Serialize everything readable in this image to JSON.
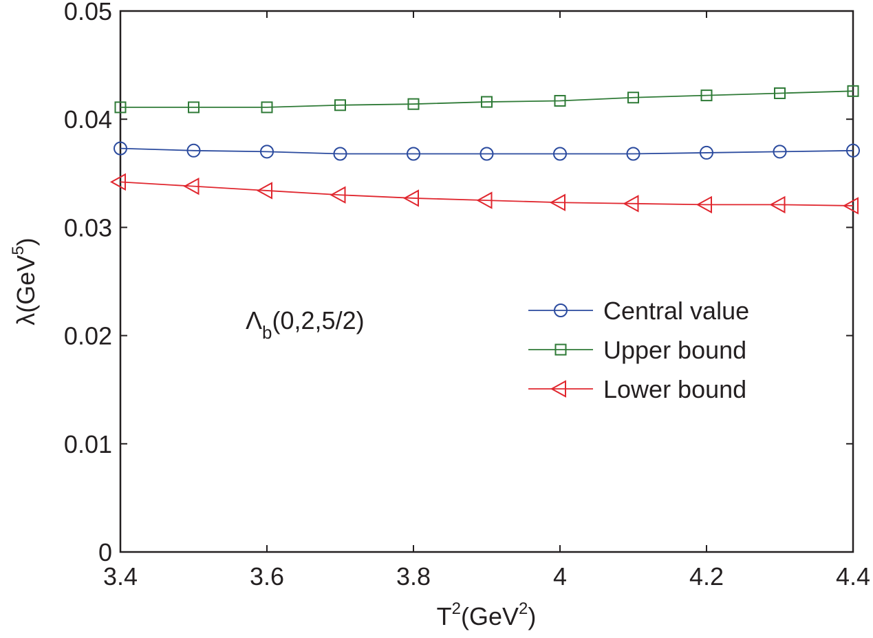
{
  "chart_data": {
    "type": "line",
    "title": "",
    "xlabel": "T",
    "xlabel_sup": "2",
    "xlabel_unit": "(GeV",
    "xlabel_unit_sup": "2",
    "xlabel_close": ")",
    "ylabel": "λ(GeV",
    "ylabel_sup": "5",
    "ylabel_close": ")",
    "xlim": [
      3.4,
      4.4
    ],
    "ylim": [
      0,
      0.05
    ],
    "xticks": [
      3.4,
      3.6,
      3.8,
      4.0,
      4.2,
      4.4
    ],
    "xtick_labels": [
      "3.4",
      "3.6",
      "3.8",
      "4",
      "4.2",
      "4.4"
    ],
    "yticks": [
      0,
      0.01,
      0.02,
      0.03,
      0.04,
      0.05
    ],
    "ytick_labels": [
      "0",
      "0.01",
      "0.02",
      "0.03",
      "0.04",
      "0.05"
    ],
    "grid": false,
    "legend_position": "center-right",
    "annotation": {
      "main": "Λ",
      "sub": "b",
      "rest": "(0,2,5/2)"
    },
    "x": [
      3.4,
      3.5,
      3.6,
      3.7,
      3.8,
      3.9,
      4.0,
      4.1,
      4.2,
      4.3,
      4.4
    ],
    "series": [
      {
        "name": "Central value",
        "marker": "circle",
        "color": "#2a4a9e",
        "values": [
          0.0373,
          0.0371,
          0.037,
          0.0368,
          0.0368,
          0.0368,
          0.0368,
          0.0368,
          0.0369,
          0.037,
          0.0371
        ]
      },
      {
        "name": "Upper bound",
        "marker": "square",
        "color": "#2e7a36",
        "values": [
          0.0411,
          0.0411,
          0.0411,
          0.0413,
          0.0414,
          0.0416,
          0.0417,
          0.042,
          0.0422,
          0.0424,
          0.0426
        ]
      },
      {
        "name": "Lower bound",
        "marker": "triangle-left",
        "color": "#e0262e",
        "values": [
          0.0342,
          0.0338,
          0.0334,
          0.033,
          0.0327,
          0.0325,
          0.0323,
          0.0322,
          0.0321,
          0.0321,
          0.032
        ]
      }
    ]
  }
}
